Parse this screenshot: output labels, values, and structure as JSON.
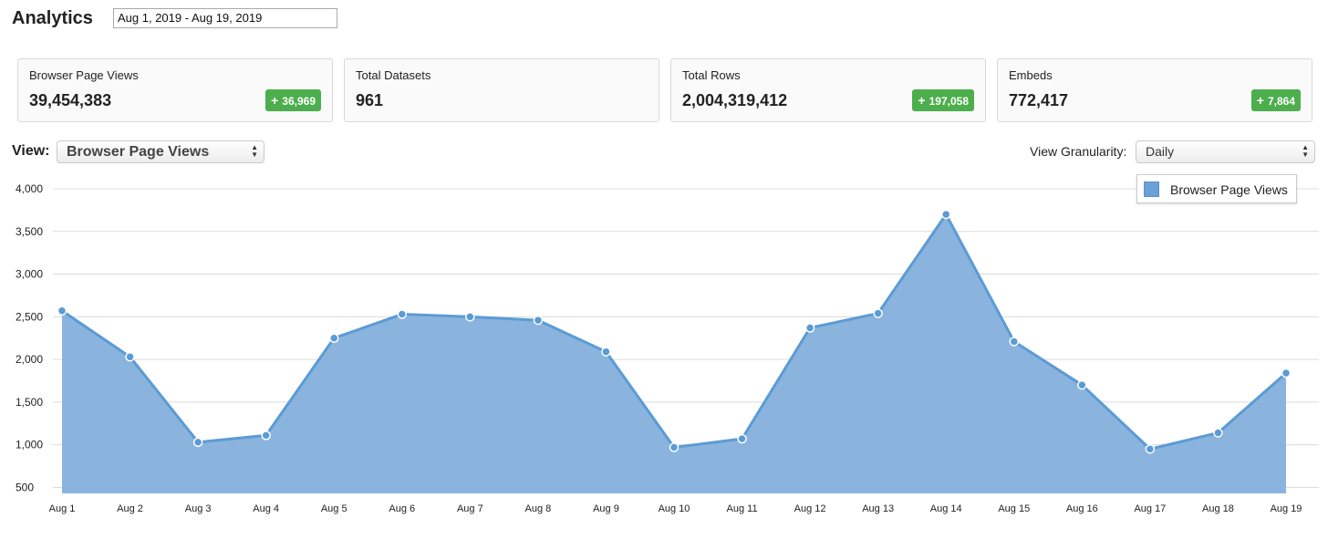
{
  "header": {
    "title": "Analytics",
    "date_range": "Aug 1, 2019 - Aug 19, 2019"
  },
  "cards": [
    {
      "label": "Browser Page Views",
      "value": "39,454,383",
      "delta": "36,969"
    },
    {
      "label": "Total Datasets",
      "value": "961",
      "delta": ""
    },
    {
      "label": "Total Rows",
      "value": "2,004,319,412",
      "delta": "197,058"
    },
    {
      "label": "Embeds",
      "value": "772,417",
      "delta": "7,864"
    }
  ],
  "controls": {
    "view_label": "View:",
    "view_selected": "Browser Page Views",
    "granularity_label": "View Granularity:",
    "granularity_selected": "Daily"
  },
  "colors": {
    "area_fill": "#8ab4de",
    "line": "#5b9bd5",
    "delta_badge": "#4cae4c"
  },
  "chart_data": {
    "type": "area",
    "title": "",
    "xlabel": "",
    "ylabel": "",
    "ylim": [
      430,
      4000
    ],
    "yticks": [
      500,
      1000,
      1500,
      2000,
      2500,
      3000,
      3500,
      4000
    ],
    "ytick_labels": [
      "500",
      "1,000",
      "1,500",
      "2,000",
      "2,500",
      "3,000",
      "3,500",
      "4,000"
    ],
    "grid": true,
    "legend": "top-right",
    "categories": [
      "Aug 1",
      "Aug 2",
      "Aug 3",
      "Aug 4",
      "Aug 5",
      "Aug 6",
      "Aug 7",
      "Aug 8",
      "Aug 9",
      "Aug 10",
      "Aug 11",
      "Aug 12",
      "Aug 13",
      "Aug 14",
      "Aug 15",
      "Aug 16",
      "Aug 17",
      "Aug 18",
      "Aug 19"
    ],
    "series": [
      {
        "name": "Browser Page Views",
        "values": [
          2570,
          2030,
          1030,
          1110,
          2250,
          2530,
          2500,
          2460,
          2090,
          970,
          1070,
          2370,
          2540,
          3700,
          2210,
          1700,
          950,
          1140,
          1840
        ]
      }
    ]
  }
}
